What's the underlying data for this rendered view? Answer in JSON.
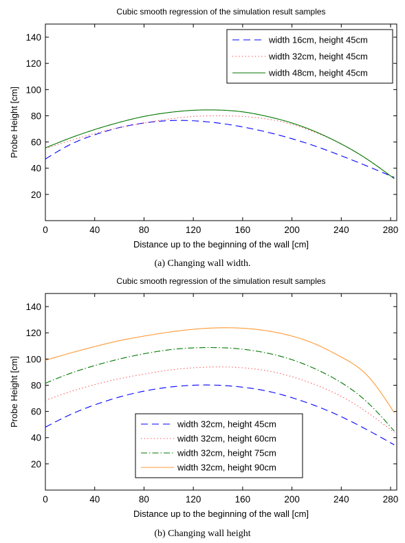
{
  "chart_data": [
    {
      "type": "line",
      "title": "Cubic smooth regression of the simulation result samples",
      "xlabel": "Distance up to the beginning of the wall [cm]",
      "ylabel": "Probe Height [cm]",
      "xlim": [
        0,
        285
      ],
      "ylim": [
        0,
        150
      ],
      "xticks": [
        0,
        40,
        80,
        120,
        160,
        200,
        240,
        280
      ],
      "yticks": [
        20,
        40,
        60,
        80,
        100,
        120,
        140
      ],
      "grid": false,
      "legend_position": "top-right",
      "caption": "(a) Changing wall width.",
      "series": [
        {
          "name": "width 16cm, height 45cm",
          "color": "#0000ff",
          "style": "dashed",
          "x": [
            0,
            20,
            40,
            60,
            80,
            100,
            120,
            140,
            160,
            180,
            200,
            220,
            240,
            260,
            283
          ],
          "values": [
            47,
            58,
            65.5,
            71,
            74.5,
            76.3,
            76.2,
            74.5,
            71.5,
            67.5,
            62.5,
            56.5,
            49.5,
            42,
            33
          ]
        },
        {
          "name": "width 32cm, height 45cm",
          "color": "#ff3333",
          "style": "dotted",
          "x": [
            0,
            20,
            40,
            60,
            80,
            100,
            120,
            140,
            160,
            180,
            200,
            220,
            240,
            260,
            283
          ],
          "values": [
            55,
            61,
            66.5,
            71,
            74.5,
            77.5,
            79.5,
            80,
            79.5,
            77.5,
            73.5,
            67,
            58.5,
            47.5,
            32
          ]
        },
        {
          "name": "width 48cm, height 45cm",
          "color": "#007700",
          "style": "solid",
          "x": [
            0,
            20,
            40,
            60,
            80,
            100,
            120,
            140,
            160,
            180,
            200,
            220,
            240,
            260,
            283
          ],
          "values": [
            55.5,
            63,
            69.5,
            75,
            79.5,
            82.5,
            84.2,
            84.4,
            83,
            79.5,
            74.5,
            67.5,
            58.5,
            47.5,
            32
          ]
        }
      ]
    },
    {
      "type": "line",
      "title": "Cubic smooth regression of the simulation result samples",
      "xlabel": "Distance up to the beginning of the wall [cm]",
      "ylabel": "Probe Height [cm]",
      "xlim": [
        0,
        285
      ],
      "ylim": [
        0,
        150
      ],
      "xticks": [
        0,
        40,
        80,
        120,
        160,
        200,
        240,
        280
      ],
      "yticks": [
        20,
        40,
        60,
        80,
        100,
        120,
        140
      ],
      "grid": false,
      "legend_position": "bottom-center",
      "caption": "(b) Changing wall height",
      "series": [
        {
          "name": "width 32cm, height 45cm",
          "color": "#0000ff",
          "style": "dashed",
          "x": [
            0,
            20,
            40,
            60,
            80,
            100,
            120,
            140,
            160,
            180,
            200,
            220,
            240,
            260,
            283
          ],
          "values": [
            48,
            57.5,
            65,
            71,
            75.5,
            78.5,
            80,
            80,
            78.5,
            75.5,
            70.5,
            64,
            56,
            46.5,
            34.5
          ]
        },
        {
          "name": "width 32cm, height 60cm",
          "color": "#ff3333",
          "style": "dotted",
          "x": [
            0,
            20,
            40,
            60,
            80,
            100,
            120,
            140,
            160,
            180,
            200,
            220,
            240,
            260,
            283
          ],
          "values": [
            68.5,
            75,
            80.5,
            85,
            88.5,
            91.5,
            93.3,
            94,
            93.3,
            91,
            86.5,
            80,
            71.5,
            60,
            44
          ]
        },
        {
          "name": "width 32cm, height 75cm",
          "color": "#007700",
          "style": "dashdot",
          "x": [
            0,
            20,
            40,
            60,
            80,
            100,
            120,
            140,
            160,
            180,
            200,
            220,
            240,
            260,
            283
          ],
          "values": [
            81.5,
            89,
            95,
            100,
            104,
            107,
            108.5,
            108.7,
            107.5,
            104.5,
            99.5,
            92,
            82,
            68,
            45
          ]
        },
        {
          "name": "width 32cm, height 90cm",
          "color": "#ff9933",
          "style": "solid",
          "x": [
            0,
            20,
            40,
            60,
            80,
            100,
            120,
            140,
            160,
            180,
            200,
            220,
            240,
            260,
            283
          ],
          "values": [
            99,
            104.5,
            109.5,
            114,
            117.5,
            120.5,
            122.7,
            123.8,
            123.5,
            121.5,
            117.5,
            111,
            101.5,
            88.5,
            59
          ]
        }
      ]
    }
  ]
}
